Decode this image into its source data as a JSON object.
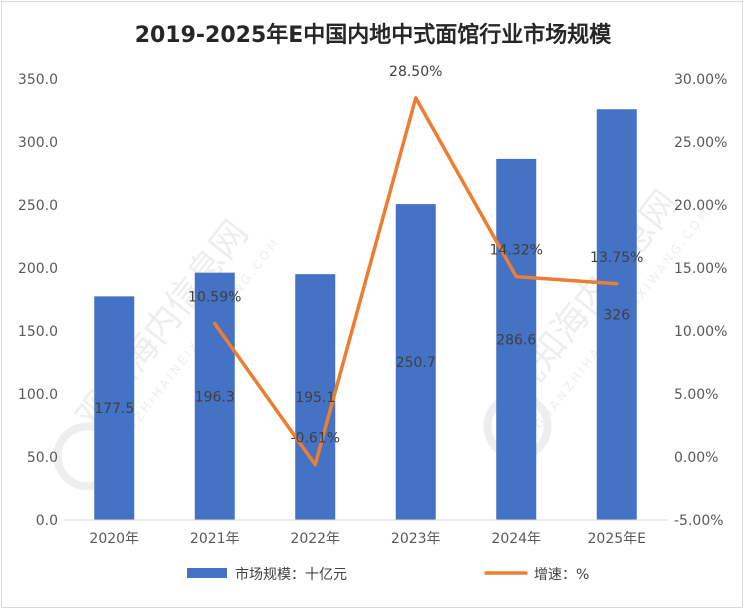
{
  "chart_data": {
    "type": "bar",
    "title": "2019-2025年E中国内地中式面馆行业市场规模",
    "categories": [
      "2020年",
      "2021年",
      "2022年",
      "2023年",
      "2024年",
      "2025年E"
    ],
    "series": [
      {
        "name": "市场规模：十亿元",
        "type": "bar",
        "axis": "left",
        "color": "#4472C4",
        "values": [
          177.5,
          196.3,
          195.1,
          250.7,
          286.6,
          326
        ],
        "labels": [
          "177.5",
          "196.3",
          "195.1",
          "250.7",
          "286.6",
          "326"
        ]
      },
      {
        "name": "增速：%",
        "type": "line",
        "axis": "right",
        "color": "#ED7D31",
        "values": [
          null,
          10.59,
          -0.61,
          28.5,
          14.32,
          13.75
        ],
        "labels": [
          "",
          "10.59%",
          "-0.61%",
          "28.50%",
          "14.32%",
          "13.75%"
        ]
      }
    ],
    "y_left": {
      "min": 0,
      "max": 350,
      "step": 50,
      "tick_labels": [
        "0.0",
        "50.0",
        "100.0",
        "150.0",
        "200.0",
        "250.0",
        "300.0",
        "350.0"
      ]
    },
    "y_right": {
      "min": -5,
      "max": 30,
      "step": 5,
      "tick_labels": [
        "-5.00%",
        "0.00%",
        "5.00%",
        "10.00%",
        "15.00%",
        "20.00%",
        "25.00%",
        "30.00%"
      ]
    },
    "grid": false,
    "legend_position": "bottom"
  },
  "watermark": {
    "text": "观知海内信息网",
    "subtext": "GUANZHIHAINEIXINXIWANG.COM"
  }
}
